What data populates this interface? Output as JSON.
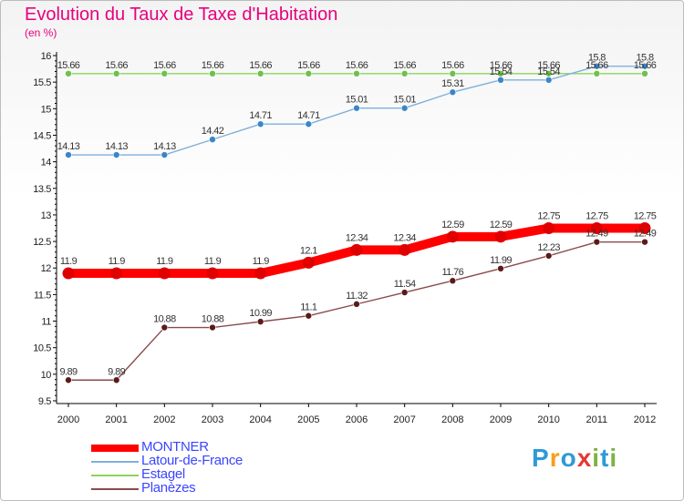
{
  "title": "Evolution du Taux de Taxe d'Habitation",
  "unit_label": "(en %)",
  "brand": {
    "letters": [
      {
        "char": "P",
        "color": "#2f9ad6"
      },
      {
        "char": "r",
        "color": "#f4a01b"
      },
      {
        "char": "o",
        "color": "#2f9ad6"
      },
      {
        "char": "x",
        "color": "#e53935"
      },
      {
        "char": "i",
        "color": "#7cb342"
      },
      {
        "char": "t",
        "color": "#2f9ad6"
      },
      {
        "char": "i",
        "color": "#7cb342"
      }
    ]
  },
  "chart_data": {
    "type": "line",
    "title": "Evolution du Taux de Taxe d'Habitation",
    "ylabel": "(en %)",
    "ylim": [
      9.5,
      16
    ],
    "yticks": [
      "9.5",
      "10",
      "10.5",
      "11",
      "11.5",
      "12",
      "12.5",
      "13",
      "13.5",
      "14",
      "14.5",
      "15",
      "15.5",
      "16"
    ],
    "grid": false,
    "legend_position": "bottom",
    "categories": [
      "2000",
      "2001",
      "2002",
      "2003",
      "2004",
      "2005",
      "2006",
      "2007",
      "2008",
      "2009",
      "2010",
      "2011",
      "2012"
    ],
    "series": [
      {
        "name": "Estagel",
        "color": "#8ed35c",
        "marker": "#6cc24a",
        "emphasis": false,
        "values": [
          15.66,
          15.66,
          15.66,
          15.66,
          15.66,
          15.66,
          15.66,
          15.66,
          15.66,
          15.66,
          15.66,
          15.66,
          15.66
        ],
        "labels": [
          "15.66",
          "15.66",
          "15.66",
          "15.66",
          "15.66",
          "15.66",
          "15.66",
          "15.66",
          "15.66",
          "15.66",
          "15.66",
          "15.66",
          "15.66"
        ]
      },
      {
        "name": "Latour-de-France",
        "color": "#7fb0dc",
        "marker": "#3a86c8",
        "emphasis": false,
        "values": [
          14.13,
          14.13,
          14.13,
          14.42,
          14.71,
          14.71,
          15.01,
          15.01,
          15.31,
          15.54,
          15.54,
          15.8,
          15.8
        ],
        "labels": [
          "14.13",
          "14.13",
          "14.13",
          "14.42",
          "14.71",
          "14.71",
          "15.01",
          "15.01",
          "15.31",
          "15.54",
          "15.54",
          "15.8",
          "15.8"
        ]
      },
      {
        "name": "Planèzes",
        "color": "#8a4b4b",
        "marker": "#5b1a1a",
        "emphasis": false,
        "values": [
          9.89,
          9.89,
          10.88,
          10.88,
          10.99,
          11.1,
          11.32,
          11.54,
          11.76,
          11.99,
          12.23,
          12.49,
          12.49
        ],
        "labels": [
          "9.89",
          "9.89",
          "10.88",
          "10.88",
          "10.99",
          "11.1",
          "11.32",
          "11.54",
          "11.76",
          "11.99",
          "12.23",
          "12.49",
          "12.49"
        ]
      },
      {
        "name": "MONTNER",
        "color": "#ff0000",
        "marker": "#e00000",
        "emphasis": true,
        "values": [
          11.9,
          11.9,
          11.9,
          11.9,
          11.9,
          12.1,
          12.34,
          12.34,
          12.59,
          12.59,
          12.75,
          12.75,
          12.75
        ],
        "labels": [
          "11.9",
          "11.9",
          "11.9",
          "11.9",
          "11.9",
          "12.1",
          "12.34",
          "12.34",
          "12.59",
          "12.59",
          "12.75",
          "12.75",
          "12.75"
        ]
      }
    ],
    "legend_order": [
      "MONTNER",
      "Latour-de-France",
      "Estagel",
      "Planèzes"
    ]
  }
}
